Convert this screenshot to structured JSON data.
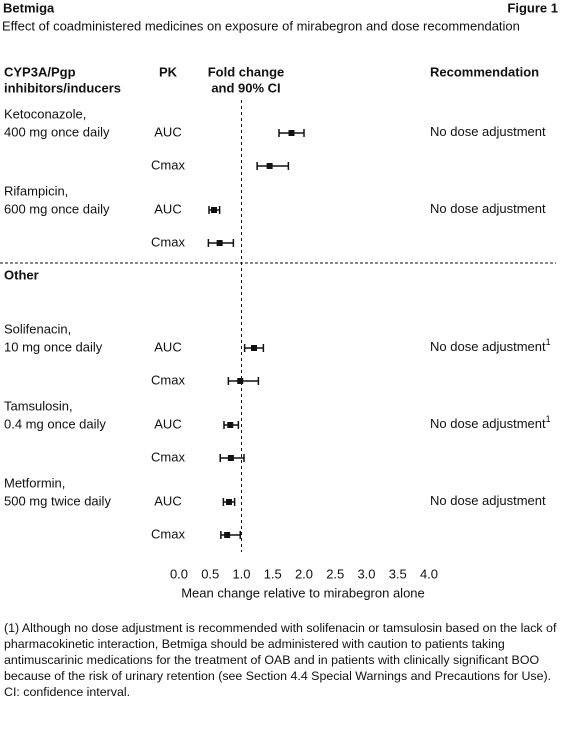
{
  "chart_data": {
    "type": "forest",
    "brand": "Betmiga",
    "figure_label": "Figure 1",
    "title": "Effect of coadministered medicines on exposure of mirabegron and dose recommendation",
    "column_headers": {
      "group": [
        "CYP3A/Pgp",
        "inhibitors/inducers"
      ],
      "pk": "PK",
      "effect": [
        "Fold change",
        "and 90% CI"
      ],
      "recommendation": "Recommendation"
    },
    "groups": [
      {
        "drugs": [
          {
            "name": [
              "Ketoconazole,",
              "400 mg once daily"
            ],
            "recommendation": "No dose adjustment",
            "rows": [
              {
                "pk": "AUC",
                "value": 1.8,
                "low": 1.6,
                "high": 2.0
              },
              {
                "pk": "Cmax",
                "value": 1.45,
                "low": 1.25,
                "high": 1.75
              }
            ]
          },
          {
            "name": [
              "Rifampicin,",
              "600 mg once daily"
            ],
            "recommendation": "No dose adjustment",
            "rows": [
              {
                "pk": "AUC",
                "value": 0.56,
                "low": 0.48,
                "high": 0.65
              },
              {
                "pk": "Cmax",
                "value": 0.65,
                "low": 0.47,
                "high": 0.87
              }
            ]
          }
        ]
      },
      {
        "label": "Other",
        "drugs": [
          {
            "name": [
              "Solifenacin,",
              "10 mg once daily"
            ],
            "recommendation": "No dose adjustment",
            "note": "1",
            "rows": [
              {
                "pk": "AUC",
                "value": 1.2,
                "low": 1.05,
                "high": 1.35
              },
              {
                "pk": "Cmax",
                "value": 0.98,
                "low": 0.79,
                "high": 1.27
              }
            ]
          },
          {
            "name": [
              "Tamsulosin,",
              "0.4 mg once daily"
            ],
            "recommendation": "No dose adjustment",
            "note": "1",
            "rows": [
              {
                "pk": "AUC",
                "value": 0.82,
                "low": 0.72,
                "high": 0.95
              },
              {
                "pk": "Cmax",
                "value": 0.83,
                "low": 0.66,
                "high": 1.04
              }
            ]
          },
          {
            "name": [
              "Metformin,",
              "500 mg twice daily"
            ],
            "recommendation": "No dose adjustment",
            "rows": [
              {
                "pk": "AUC",
                "value": 0.8,
                "low": 0.71,
                "high": 0.89
              },
              {
                "pk": "Cmax",
                "value": 0.77,
                "low": 0.67,
                "high": 0.98
              }
            ]
          }
        ]
      }
    ],
    "xlim": [
      0,
      4
    ],
    "xticks": [
      {
        "value": 0,
        "label": "0.0"
      },
      0.5,
      {
        "value": 1,
        "label": "1.0"
      },
      1.5,
      {
        "value": 2,
        "label": "2.0"
      },
      2.5,
      {
        "value": 3,
        "label": "3.0"
      },
      3.5,
      {
        "value": 4,
        "label": "4.0"
      }
    ],
    "reference_line": 1,
    "xlabel": "Mean change relative to mirabegron alone",
    "color": "#111111",
    "footnotes": [
      "(1) Although no dose adjustment is recommended with solifenacin or tamsulosin based on the lack of pharmacokinetic interaction, Betmiga should be administered with caution to patients taking antimuscarinic medications for the treatment of OAB and in patients with clinically significant BOO because of the risk of urinary retention (see Section 4.4 Special Warnings and Precautions for Use).",
      "CI: confidence interval."
    ]
  }
}
